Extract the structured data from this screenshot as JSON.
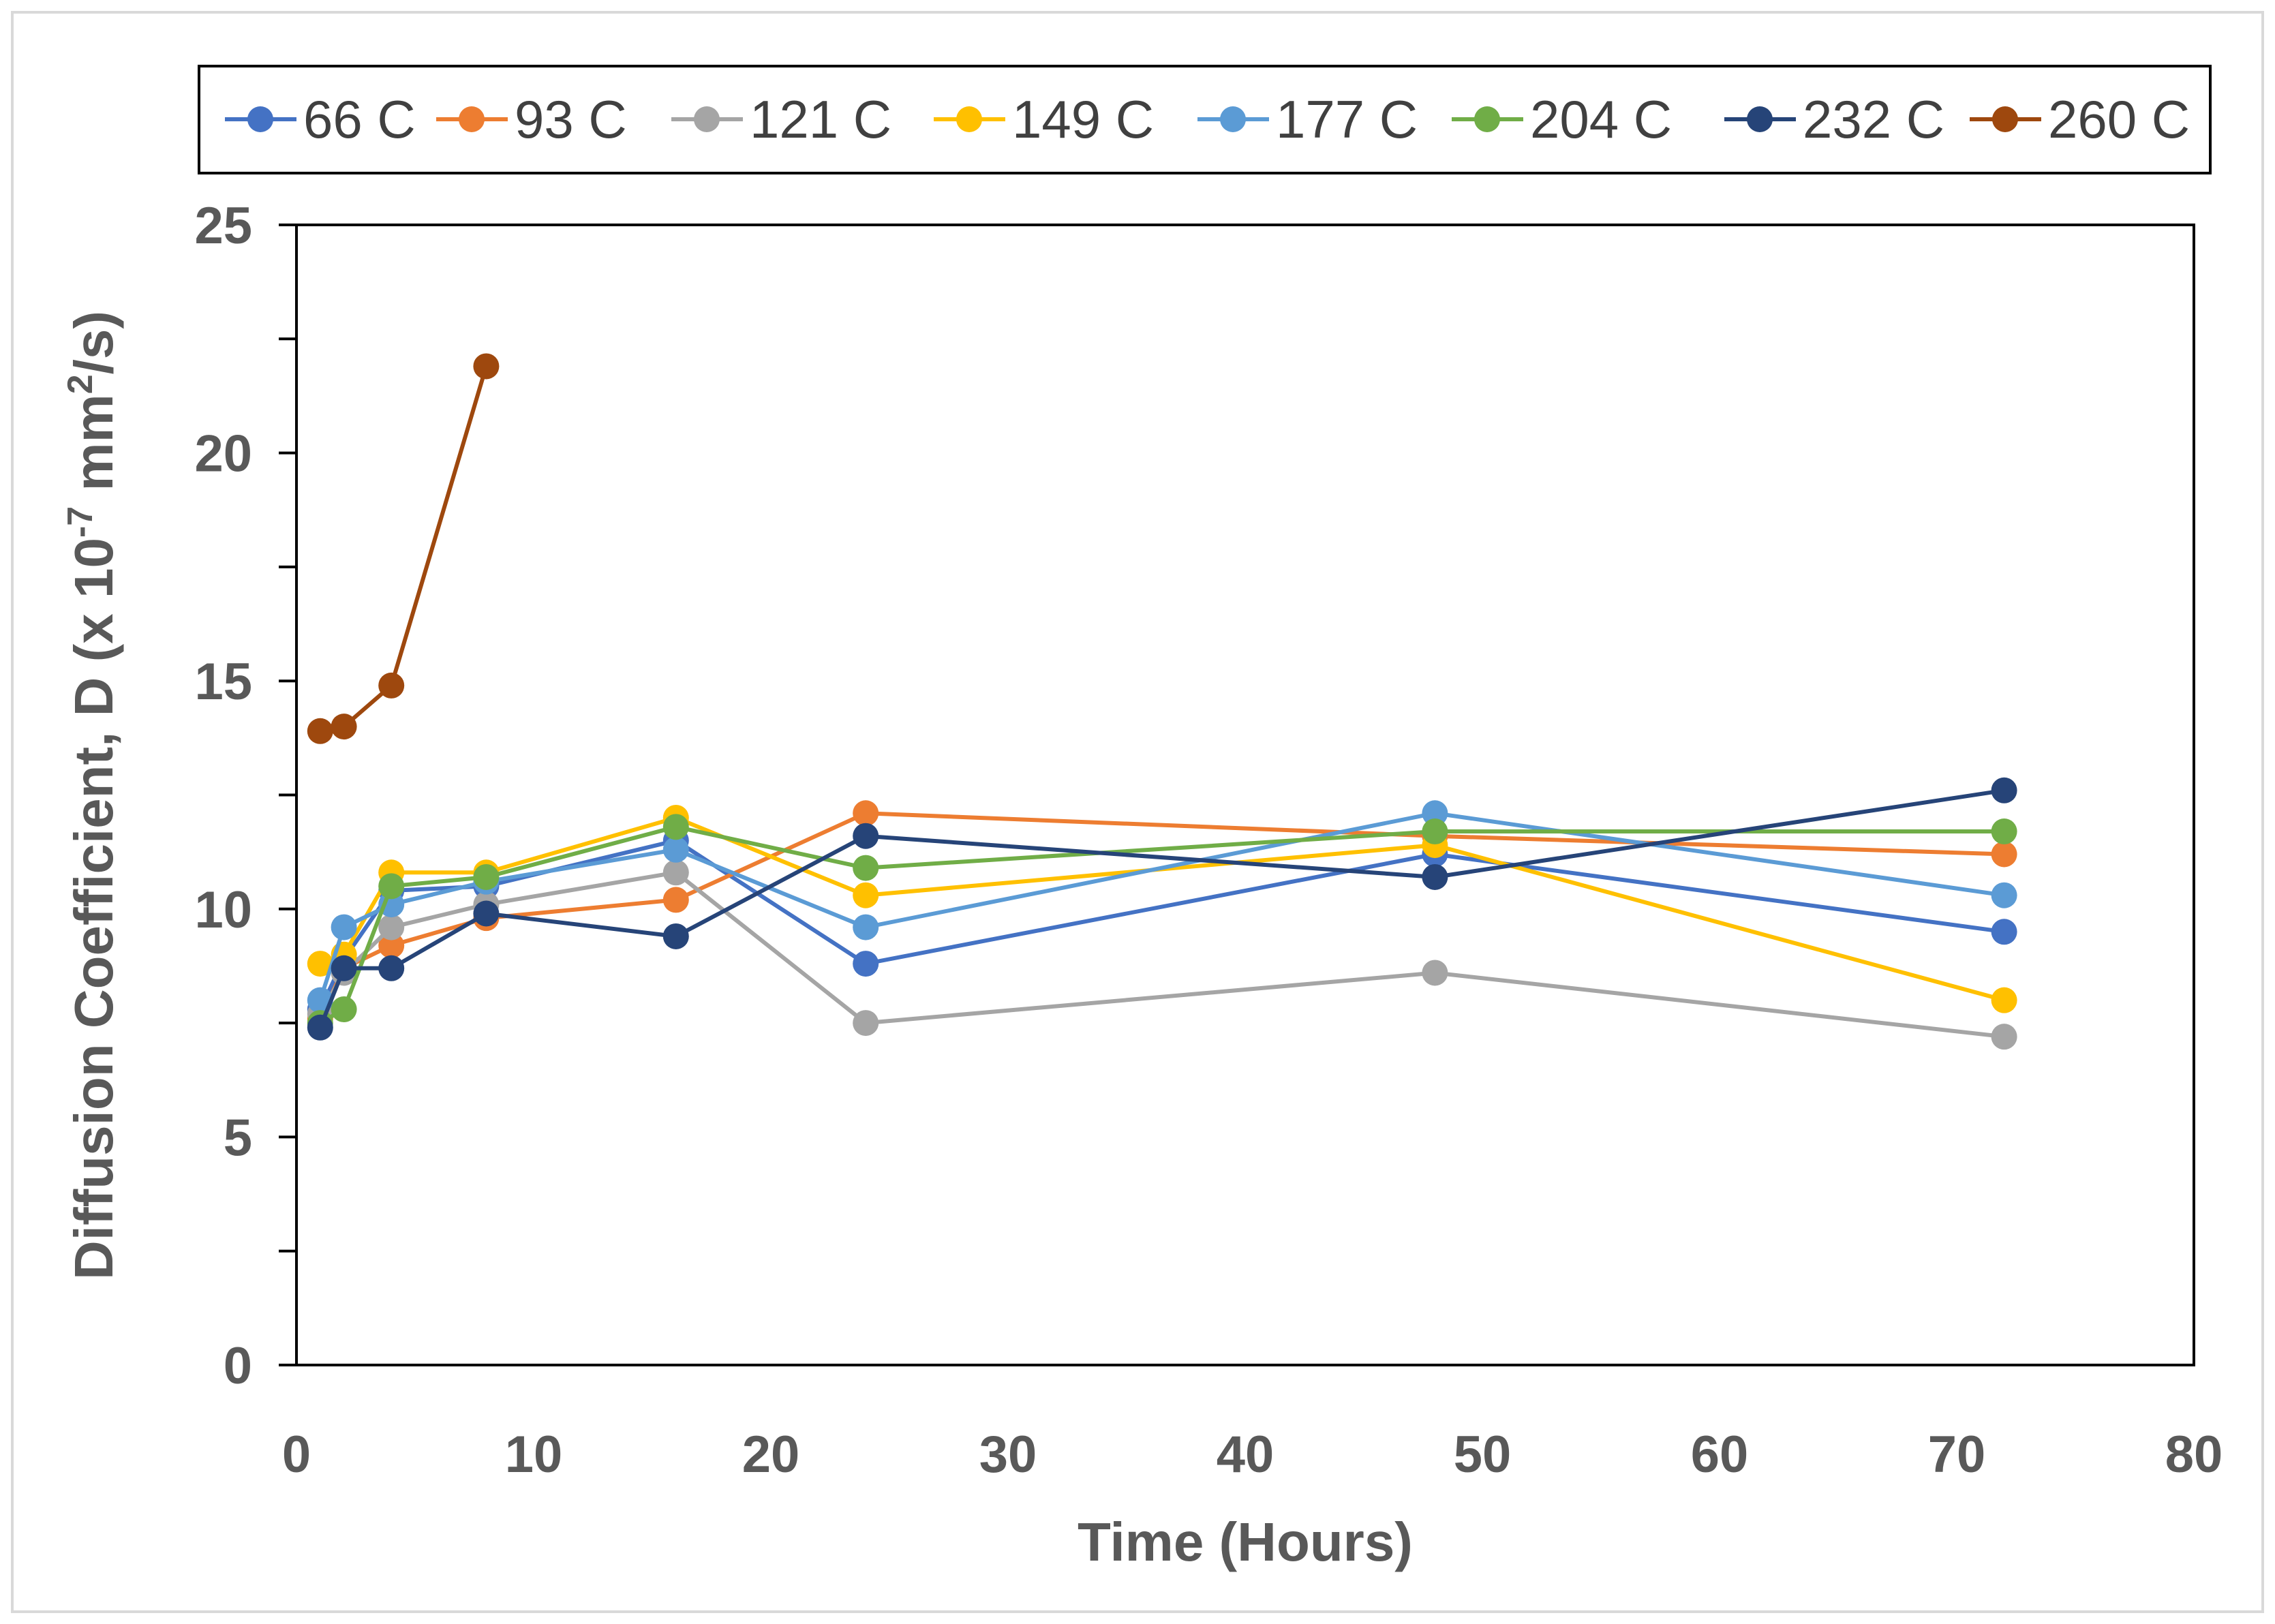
{
  "chart_data": {
    "type": "line",
    "title": "",
    "xlabel": "Time (Hours)",
    "ylabel": {
      "prefix": "Diffusion Coefficient, D (x 10",
      "exponent": "-7",
      "middle": " mm",
      "superscript2": "2",
      "suffix": "/s)"
    },
    "xlim": [
      0,
      80
    ],
    "ylim": [
      0,
      25
    ],
    "xticks": [
      0,
      10,
      20,
      30,
      40,
      50,
      60,
      70,
      80
    ],
    "yticks": [
      0,
      5,
      10,
      15,
      20,
      25
    ],
    "grid": false,
    "legend_position": "top",
    "series": [
      {
        "name": "66 C",
        "color": "#4472C4",
        "x": [
          1,
          2,
          4,
          8,
          16,
          24,
          48,
          72
        ],
        "y": [
          7.8,
          8.9,
          10.4,
          10.5,
          11.5,
          8.8,
          11.2,
          9.5
        ]
      },
      {
        "name": "93 C",
        "color": "#ED7D31",
        "x": [
          1,
          2,
          4,
          8,
          16,
          24,
          48,
          72
        ],
        "y": [
          7.6,
          8.7,
          9.2,
          9.8,
          10.2,
          12.1,
          11.6,
          11.2
        ]
      },
      {
        "name": "121 C",
        "color": "#A5A5A5",
        "x": [
          1,
          2,
          4,
          8,
          16,
          24,
          48,
          72
        ],
        "y": [
          7.7,
          8.6,
          9.6,
          10.1,
          10.8,
          7.5,
          8.6,
          7.2
        ]
      },
      {
        "name": "149 C",
        "color": "#FFC000",
        "x": [
          1,
          2,
          4,
          8,
          16,
          24,
          48,
          72
        ],
        "y": [
          8.8,
          9.0,
          10.8,
          10.8,
          12.0,
          10.3,
          11.4,
          8.0
        ]
      },
      {
        "name": "177 C",
        "color": "#5B9BD5",
        "x": [
          1,
          2,
          4,
          8,
          16,
          24,
          48,
          72
        ],
        "y": [
          8.0,
          9.6,
          10.1,
          10.6,
          11.3,
          9.6,
          12.1,
          10.3
        ]
      },
      {
        "name": "204 C",
        "color": "#70AD47",
        "x": [
          1,
          2,
          4,
          8,
          16,
          24,
          48,
          72
        ],
        "y": [
          7.5,
          7.8,
          10.5,
          10.7,
          11.8,
          10.9,
          11.7,
          11.7
        ]
      },
      {
        "name": "232 C",
        "color": "#264478",
        "x": [
          1,
          2,
          4,
          8,
          16,
          24,
          48,
          72
        ],
        "y": [
          7.4,
          8.7,
          8.7,
          9.9,
          9.4,
          11.6,
          10.7,
          12.6
        ]
      },
      {
        "name": "260 C",
        "color": "#9E480E",
        "x": [
          1,
          2,
          4,
          8
        ],
        "y": [
          13.9,
          14.0,
          14.9,
          21.9
        ]
      }
    ]
  }
}
